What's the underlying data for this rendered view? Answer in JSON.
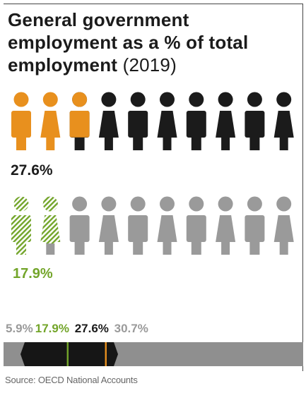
{
  "title": "General government employment as a % of total employment",
  "year": "(2019)",
  "source": "Source: OECD National Accounts",
  "colors": {
    "country": "#e8901e",
    "oecd": "#73a52a",
    "dark": "#1b1b1b",
    "grey": "#9a9a9a"
  },
  "chart_data": {
    "type": "pictogram",
    "icons_per_row": 10,
    "series": [
      {
        "name": "",
        "label": "27.6%",
        "value": 27.6
      },
      {
        "name": "",
        "label": "17.9%",
        "value": 17.9
      }
    ],
    "scale_labels": [
      {
        "label": "5.9%",
        "color": "#9a9a9a"
      },
      {
        "label": "17.9%",
        "color": "#73a52a"
      },
      {
        "label": "27.6%",
        "color": "#1b1b1b"
      },
      {
        "label": "30.7%",
        "color": "#9a9a9a"
      }
    ],
    "range": {
      "min": 5.9,
      "max": 30.7
    },
    "markers": [
      {
        "value": 17.9,
        "color": "#73a52a"
      },
      {
        "value": 27.6,
        "color": "#e8901e"
      }
    ]
  }
}
